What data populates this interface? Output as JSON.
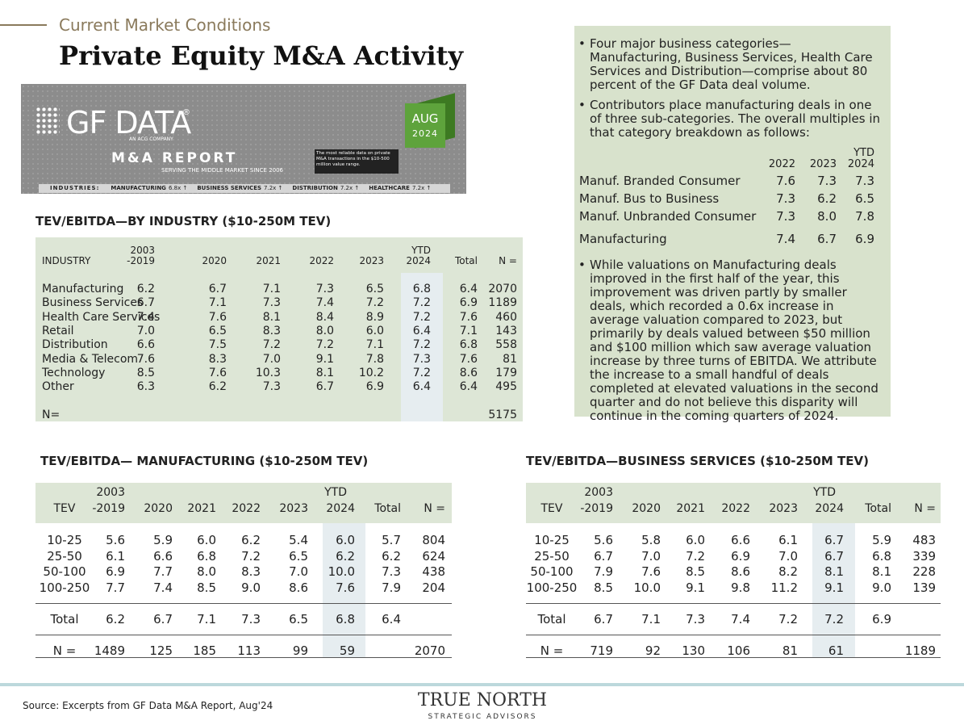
{
  "header": {
    "section": "Current Market Conditions",
    "title": "Private Equity M&A Activity"
  },
  "banner": {
    "logo": "GF DATA",
    "registered": "®",
    "parent": "AN ACG COMPANY",
    "report": "M&A REPORT",
    "since": "SERVING THE MIDDLE MARKET SINCE 2006",
    "tagline": "The most reliable data on private M&A transactions in the $10-500 million value range.",
    "month": "AUG",
    "year": "2024",
    "industries_label": "INDUSTRIES:",
    "industries": [
      {
        "name": "MANUFACTURING",
        "value": "6.8x ↑"
      },
      {
        "name": "BUSINESS SERVICES",
        "value": "7.2x ↑"
      },
      {
        "name": "DISTRIBUTION",
        "value": "7.2x ↑"
      },
      {
        "name": "HEALTHCARE",
        "value": "7.2x ↑"
      }
    ]
  },
  "industry_table": {
    "title": "TEV/EBITDA—BY INDUSTRY ($10-250M TEV)",
    "header": [
      [
        "INDUSTRY"
      ],
      [
        "2003",
        "-2019"
      ],
      [
        "2020"
      ],
      [
        "2021"
      ],
      [
        "2022"
      ],
      [
        "2023"
      ],
      [
        "YTD",
        "2024"
      ],
      [
        "Total"
      ],
      [
        "N ="
      ]
    ],
    "rows": [
      [
        "Manufacturing",
        "6.2",
        "6.7",
        "7.1",
        "7.3",
        "6.5",
        "6.8",
        "6.4",
        "2070"
      ],
      [
        "Business Services",
        "6.7",
        "7.1",
        "7.3",
        "7.4",
        "7.2",
        "7.2",
        "6.9",
        "1189"
      ],
      [
        "Health Care Services",
        "7.4",
        "7.6",
        "8.1",
        "8.4",
        "8.9",
        "7.2",
        "7.6",
        "460"
      ],
      [
        "Retail",
        "7.0",
        "6.5",
        "8.3",
        "8.0",
        "6.0",
        "6.4",
        "7.1",
        "143"
      ],
      [
        "Distribution",
        "6.6",
        "7.5",
        "7.2",
        "7.2",
        "7.1",
        "7.2",
        "6.8",
        "558"
      ],
      [
        "Media & Telecom",
        "7.6",
        "8.3",
        "7.0",
        "9.1",
        "7.8",
        "7.3",
        "7.6",
        "81"
      ],
      [
        "Technology",
        "8.5",
        "7.6",
        "10.3",
        "8.1",
        "10.2",
        "7.2",
        "8.6",
        "179"
      ],
      [
        "Other",
        "6.3",
        "6.2",
        "7.3",
        "6.7",
        "6.9",
        "6.4",
        "6.4",
        "495"
      ]
    ],
    "total": [
      "N=",
      "5175"
    ]
  },
  "notes": {
    "bullets": [
      "Four major business categories—Manufacturing, Business Services, Health Care Services and Distribution—comprise about 80 percent of the GF Data deal volume.",
      "Contributors place manufacturing deals in one of three sub-categories. The overall multiples in that category breakdown as follows:",
      "While valuations on Manufacturing deals improved in the first half of the year, this improvement was driven partly by smaller deals, which recorded a 0.6x increase in average valuation compared to 2023, but primarily by deals valued between $50 million and $100 million which saw average valuation increase by three turns of EBITDA. We attribute the increase to a small handful of deals completed at elevated valuations in the second quarter and do not believe this disparity will continue in the coming quarters of 2024."
    ],
    "sub_table": {
      "header": [
        [
          "2022"
        ],
        [
          "2023"
        ],
        [
          "YTD",
          "2024"
        ]
      ],
      "rows": [
        [
          "Manuf. Branded Consumer",
          "7.6",
          "7.3",
          "7.3"
        ],
        [
          "Manuf. Bus to Business",
          "7.3",
          "6.2",
          "6.5"
        ],
        [
          "Manuf. Unbranded Consumer",
          "7.3",
          "8.0",
          "7.8"
        ]
      ],
      "total": [
        "Manufacturing",
        "7.4",
        "6.7",
        "6.9"
      ]
    }
  },
  "mfg_table": {
    "title": "TEV/EBITDA— MANUFACTURING ($10-250M TEV)",
    "header": [
      [
        "TEV"
      ],
      [
        "2003",
        "-2019"
      ],
      [
        "2020"
      ],
      [
        "2021"
      ],
      [
        "2022"
      ],
      [
        "2023"
      ],
      [
        "YTD",
        "2024"
      ],
      [
        "Total"
      ],
      [
        "N ="
      ]
    ],
    "rows": [
      [
        "10-25",
        "5.6",
        "5.9",
        "6.0",
        "6.2",
        "5.4",
        "6.0",
        "5.7",
        "804"
      ],
      [
        "25-50",
        "6.1",
        "6.6",
        "6.8",
        "7.2",
        "6.5",
        "6.2",
        "6.2",
        "624"
      ],
      [
        "50-100",
        "6.9",
        "7.7",
        "8.0",
        "8.3",
        "7.0",
        "10.0",
        "7.3",
        "438"
      ],
      [
        "100-250",
        "7.7",
        "7.4",
        "8.5",
        "9.0",
        "8.6",
        "7.6",
        "7.9",
        "204"
      ]
    ],
    "total_row": [
      "Total",
      "6.2",
      "6.7",
      "7.1",
      "7.3",
      "6.5",
      "6.8",
      "6.4",
      null
    ],
    "n_row": [
      "N =",
      "1489",
      "125",
      "185",
      "113",
      "99",
      "59",
      null,
      "2070"
    ]
  },
  "bs_table": {
    "title": "TEV/EBITDA—BUSINESS SERVICES ($10-250M TEV)",
    "header": [
      [
        "TEV"
      ],
      [
        "2003",
        "-2019"
      ],
      [
        "2020"
      ],
      [
        "2021"
      ],
      [
        "2022"
      ],
      [
        "2023"
      ],
      [
        "YTD",
        "2024"
      ],
      [
        "Total"
      ],
      [
        "N ="
      ]
    ],
    "rows": [
      [
        "10-25",
        "5.6",
        "5.8",
        "6.0",
        "6.6",
        "6.1",
        "6.7",
        "5.9",
        "483"
      ],
      [
        "25-50",
        "6.7",
        "7.0",
        "7.2",
        "6.9",
        "7.0",
        "6.7",
        "6.8",
        "339"
      ],
      [
        "50-100",
        "7.9",
        "7.6",
        "8.5",
        "8.6",
        "8.2",
        "8.1",
        "8.1",
        "228"
      ],
      [
        "100-250",
        "8.5",
        "10.0",
        "9.1",
        "9.8",
        "11.2",
        "9.1",
        "9.0",
        "139"
      ]
    ],
    "total_row": [
      "Total",
      "6.7",
      "7.1",
      "7.3",
      "7.4",
      "7.2",
      "7.2",
      "6.9",
      null
    ],
    "n_row": [
      "N =",
      "719",
      "92",
      "130",
      "106",
      "81",
      "61",
      null,
      "1189"
    ]
  },
  "footer": {
    "source": "Source: Excerpts from GF Data M&A Report, Aug'24",
    "brand": "TRUE NORTH",
    "brand_sub": "STRATEGIC ADVISORS"
  }
}
